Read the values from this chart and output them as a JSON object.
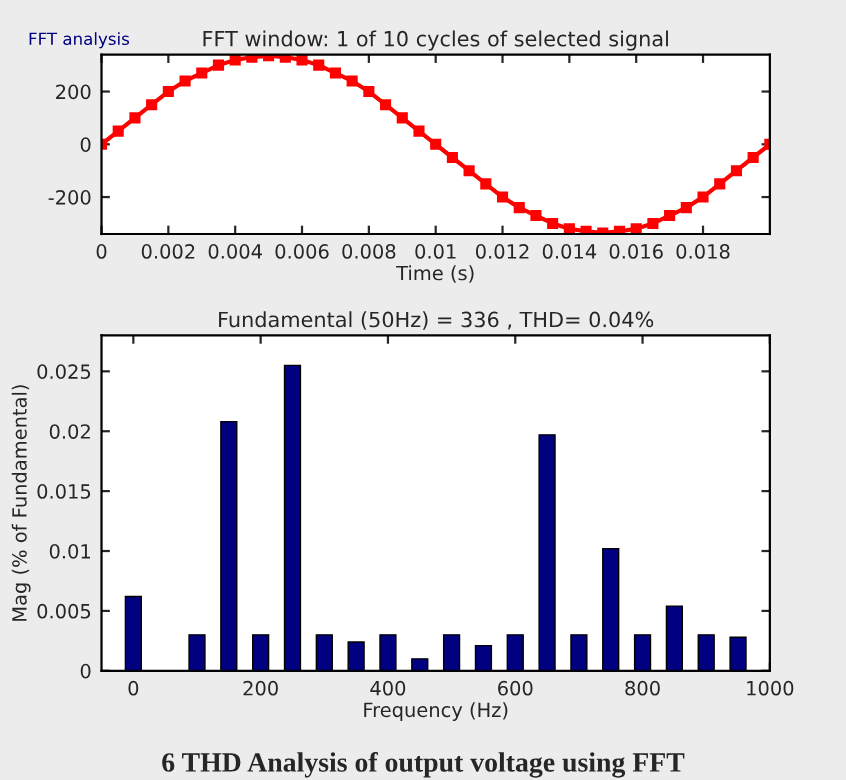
{
  "chart_data": [
    {
      "type": "line",
      "title": "FFT window: 1 of 10 cycles of selected signal",
      "xlabel": "Time (s)",
      "annotations": [
        "FFT analysis"
      ],
      "series": [
        {
          "color": "#ff0000",
          "x": [
            0,
            0.0005,
            0.001,
            0.0015,
            0.002,
            0.0025,
            0.003,
            0.0035,
            0.004,
            0.0045,
            0.005,
            0.0055,
            0.006,
            0.0065,
            0.007,
            0.0075,
            0.008,
            0.0085,
            0.009,
            0.0095,
            0.01,
            0.0105,
            0.011,
            0.0115,
            0.012,
            0.0125,
            0.013,
            0.0135,
            0.014,
            0.0145,
            0.015,
            0.0155,
            0.016,
            0.0165,
            0.017,
            0.0175,
            0.018,
            0.0185,
            0.019,
            0.0195,
            0.02
          ],
          "values": [
            0,
            50,
            100,
            150,
            200,
            240,
            270,
            300,
            320,
            330,
            336,
            330,
            320,
            300,
            270,
            240,
            200,
            150,
            100,
            50,
            0,
            -50,
            -100,
            -150,
            -200,
            -240,
            -270,
            -300,
            -320,
            -330,
            -336,
            -330,
            -320,
            -300,
            -270,
            -240,
            -200,
            -150,
            -100,
            -50,
            0
          ]
        }
      ],
      "marker": "square",
      "line_style": "solid",
      "xlim": [
        0,
        0.02
      ],
      "ylim": [
        -340,
        340
      ],
      "xticks": [
        0,
        0.002,
        0.004,
        0.006,
        0.008,
        0.01,
        0.012,
        0.014,
        0.016,
        0.018
      ],
      "yticks": [
        -200,
        0,
        200
      ],
      "grid": false
    },
    {
      "type": "bar",
      "title": "Fundamental (50Hz) = 336 , THD= 0.04%",
      "xlabel": "Frequency (Hz)",
      "ylabel": "Mag (% of Fundamental)",
      "annotations": [
        "6 THD Analysis of output voltage using FFT"
      ],
      "x": [
        0,
        50,
        100,
        150,
        200,
        250,
        300,
        350,
        400,
        450,
        500,
        550,
        600,
        650,
        700,
        750,
        800,
        850,
        900,
        950
      ],
      "series": [
        {
          "color": "#000080",
          "values": [
            0.0062,
            null,
            0.003,
            0.0208,
            0.003,
            0.0255,
            0.003,
            0.0024,
            0.003,
            0.001,
            0.003,
            0.0021,
            0.003,
            0.0197,
            0.003,
            0.0102,
            0.003,
            0.0054,
            0.003,
            0.0028
          ]
        }
      ],
      "xlim": [
        -50,
        1000
      ],
      "ylim": [
        0,
        0.028
      ],
      "xticks": [
        0,
        200,
        400,
        600,
        800,
        1000
      ],
      "yticks": [
        0,
        0.005,
        0.01,
        0.015,
        0.02,
        0.025
      ],
      "grid": false
    }
  ]
}
